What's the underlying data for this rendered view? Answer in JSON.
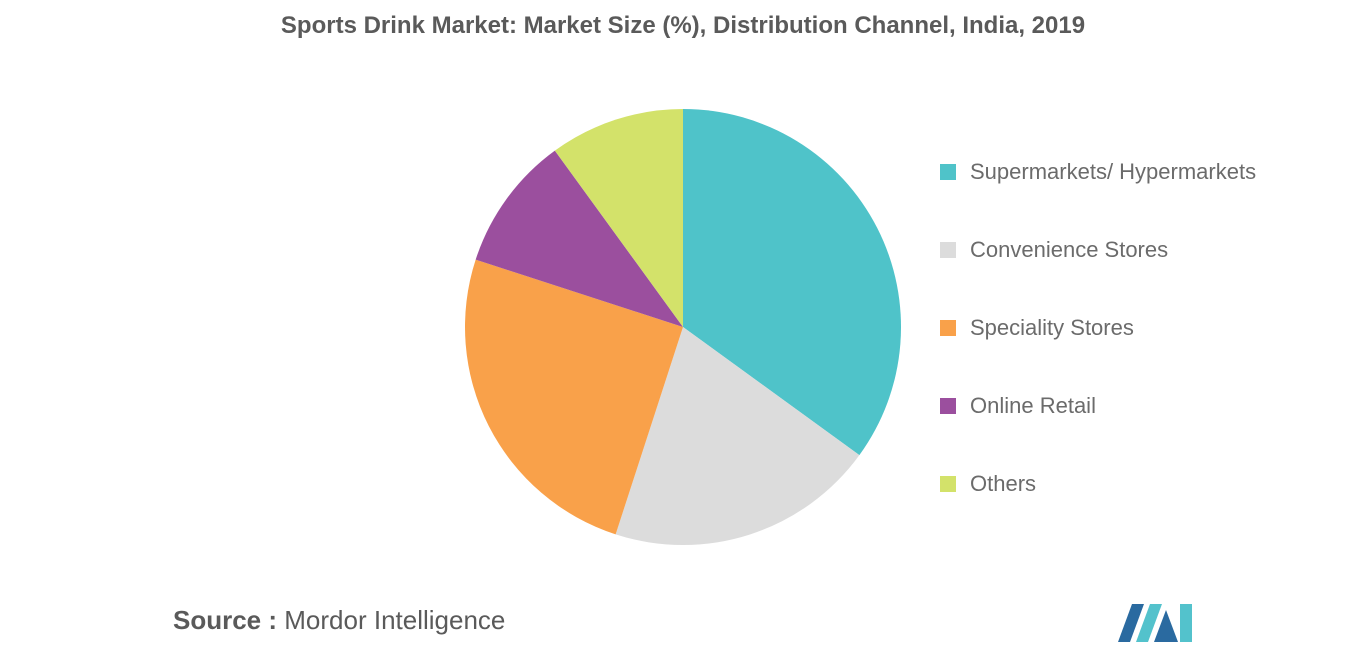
{
  "chart_data": {
    "type": "pie",
    "title": "Sports Drink Market: Market Size (%), Distribution Channel, India, 2019",
    "categories": [
      "Supermarkets/ Hypermarkets",
      "Convenience Stores",
      "Speciality Stores",
      "Online Retail",
      "Others"
    ],
    "values": [
      35,
      20,
      25,
      10,
      10
    ],
    "colors": [
      "#4fc3c9",
      "#dcdcdc",
      "#f9a14a",
      "#9b4f9e",
      "#d3e26a"
    ],
    "legend_position": "right"
  },
  "source": {
    "prefix": "Source :",
    "text": "Mordor Intelligence"
  },
  "logo": {
    "icon": "mordor-intelligence-logo",
    "colors": [
      "#2a6aa0",
      "#53c2cc"
    ]
  }
}
